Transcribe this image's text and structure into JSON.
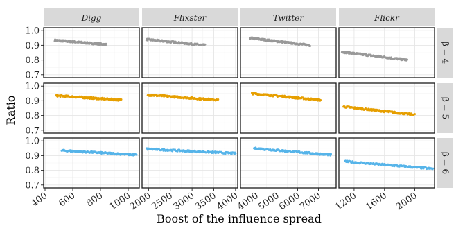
{
  "chart_data": {
    "type": "scatter",
    "facet_layout": "grid",
    "xlabel": "Boost of the influence spread",
    "ylabel": "Ratio",
    "columns": [
      {
        "name": "Digg",
        "xlim": [
          390,
          1080
        ],
        "ticks": [
          400,
          600,
          800,
          1000
        ]
      },
      {
        "name": "Flixster",
        "xlim": [
          1850,
          4050
        ],
        "ticks": [
          2000,
          2500,
          3000,
          3500,
          4000
        ]
      },
      {
        "name": "Twitter",
        "xlim": [
          3250,
          7850
        ],
        "ticks": [
          4000,
          5000,
          6000,
          7000
        ]
      },
      {
        "name": "Flickr",
        "xlim": [
          1000,
          2260
        ],
        "ticks": [
          1200,
          1600,
          2000
        ]
      }
    ],
    "rows": [
      {
        "name": "β = 4",
        "color": "#999999"
      },
      {
        "name": "β = 5",
        "color": "#E69F00"
      },
      {
        "name": "β = 6",
        "color": "#56B4E9"
      }
    ],
    "ylim": [
      0.68,
      1.02
    ],
    "yticks": [
      "0.7",
      "0.8",
      "0.9",
      "1.0"
    ],
    "grid": true,
    "panels": [
      {
        "row": 0,
        "col": 0,
        "x_range": [
          470,
          840
        ],
        "y_range": [
          0.935,
          0.905
        ]
      },
      {
        "row": 0,
        "col": 1,
        "x_range": [
          1950,
          3300
        ],
        "y_range": [
          0.94,
          0.9
        ]
      },
      {
        "row": 0,
        "col": 2,
        "x_range": [
          3700,
          6600
        ],
        "y_range": [
          0.95,
          0.9
        ]
      },
      {
        "row": 0,
        "col": 3,
        "x_range": [
          1040,
          1900
        ],
        "y_range": [
          0.855,
          0.8
        ]
      },
      {
        "row": 1,
        "col": 0,
        "x_range": [
          480,
          950
        ],
        "y_range": [
          0.935,
          0.905
        ]
      },
      {
        "row": 1,
        "col": 1,
        "x_range": [
          1980,
          3600
        ],
        "y_range": [
          0.94,
          0.905
        ]
      },
      {
        "row": 1,
        "col": 2,
        "x_range": [
          3800,
          7100
        ],
        "y_range": [
          0.95,
          0.905
        ]
      },
      {
        "row": 1,
        "col": 3,
        "x_range": [
          1060,
          2000
        ],
        "y_range": [
          0.86,
          0.805
        ]
      },
      {
        "row": 2,
        "col": 0,
        "x_range": [
          520,
          1060
        ],
        "y_range": [
          0.935,
          0.905
        ]
      },
      {
        "row": 2,
        "col": 1,
        "x_range": [
          1960,
          4000
        ],
        "y_range": [
          0.945,
          0.915
        ]
      },
      {
        "row": 2,
        "col": 2,
        "x_range": [
          3900,
          7600
        ],
        "y_range": [
          0.95,
          0.905
        ]
      },
      {
        "row": 2,
        "col": 3,
        "x_range": [
          1080,
          2240
        ],
        "y_range": [
          0.86,
          0.81
        ]
      }
    ]
  }
}
